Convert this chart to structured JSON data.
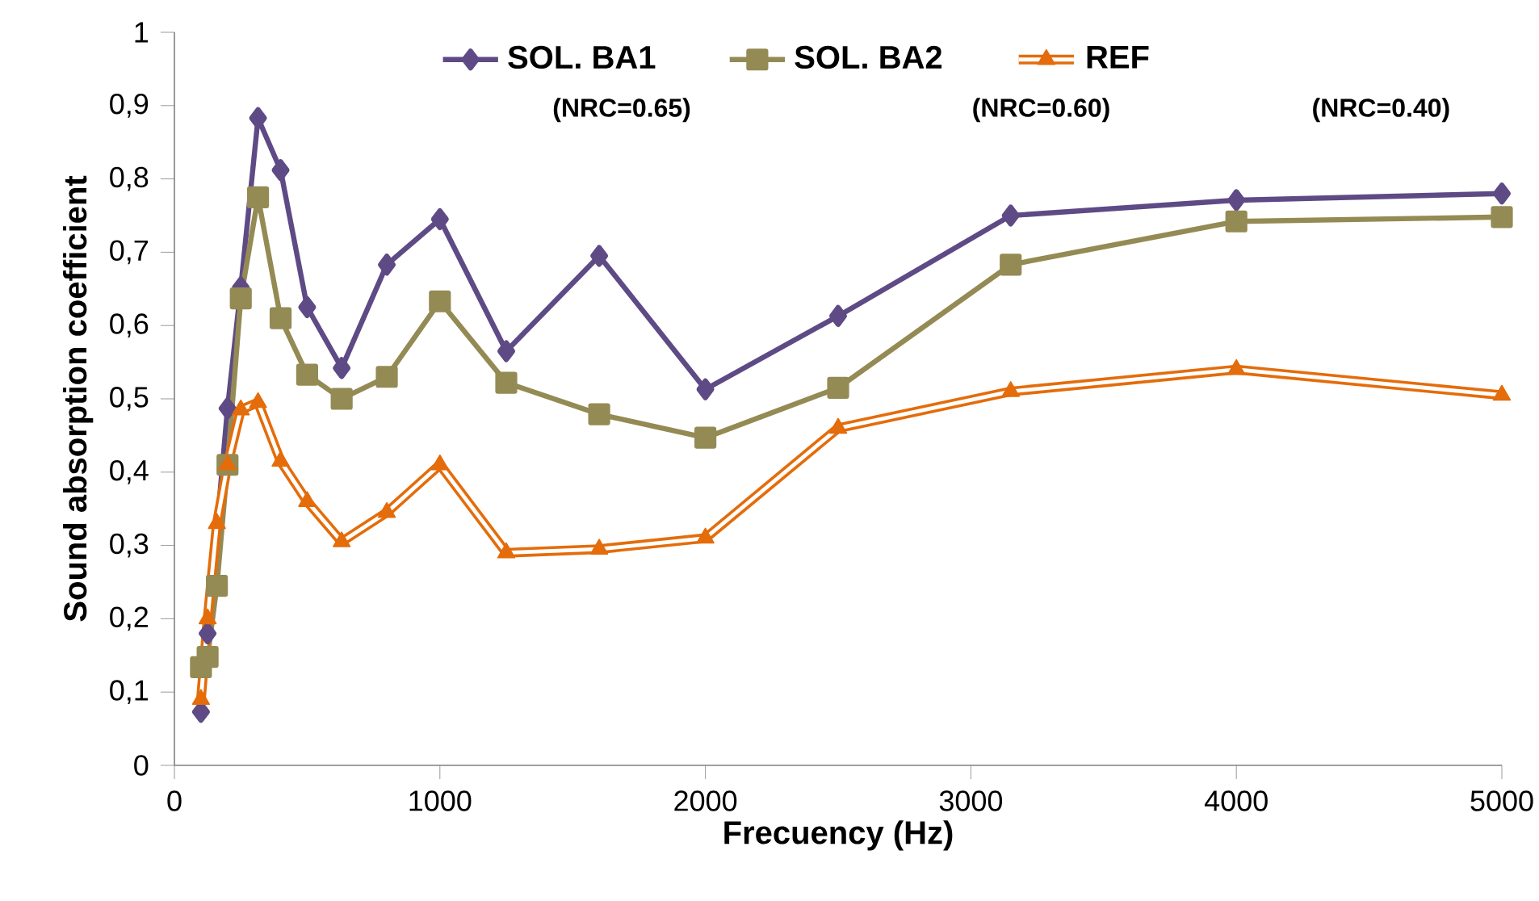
{
  "chart_data": {
    "type": "line",
    "xlabel": "Frecuency (Hz)",
    "ylabel": "Sound absorption coefficient",
    "x": [
      100,
      125,
      160,
      200,
      250,
      315,
      400,
      500,
      630,
      800,
      1000,
      1250,
      1600,
      2000,
      2500,
      3150,
      4000,
      5000
    ],
    "series": [
      {
        "name": "SOL. BA1",
        "color": "#5e4a85",
        "marker": "diamond",
        "values": [
          0.073,
          0.18,
          null,
          0.487,
          0.652,
          0.883,
          0.812,
          0.625,
          0.542,
          0.683,
          0.745,
          0.565,
          0.695,
          0.513,
          0.613,
          0.75,
          0.771,
          0.78
        ]
      },
      {
        "name": "SOL. BA2",
        "color": "#948a54",
        "marker": "square",
        "values": [
          0.134,
          0.148,
          0.245,
          0.41,
          0.637,
          0.775,
          0.61,
          0.533,
          0.5,
          0.53,
          0.633,
          0.522,
          0.479,
          0.447,
          0.515,
          0.683,
          0.742,
          0.748
        ]
      },
      {
        "name": "REF",
        "color": "#e46c0a",
        "marker": "triangle",
        "values": [
          0.09,
          0.2,
          0.33,
          0.41,
          0.485,
          0.495,
          0.415,
          0.36,
          0.305,
          0.345,
          0.41,
          0.29,
          0.295,
          0.31,
          0.46,
          0.51,
          0.54,
          0.505
        ]
      }
    ],
    "annotations": [
      "(NRC=0.65)",
      "(NRC=0.60)",
      "(NRC=0.40)"
    ],
    "xlim": [
      0,
      5000
    ],
    "xticks": [
      0,
      1000,
      2000,
      3000,
      4000,
      5000
    ],
    "ylim": [
      0,
      1
    ],
    "yticks": [
      0,
      {
        "value": 0.1,
        "label": "0,1"
      },
      {
        "value": 0.2,
        "label": "0,2"
      },
      {
        "value": 0.3,
        "label": "0,3"
      },
      {
        "value": 0.4,
        "label": "0,4"
      },
      {
        "value": 0.5,
        "label": "0,5"
      },
      {
        "value": 0.6,
        "label": "0,6"
      },
      {
        "value": 0.7,
        "label": "0,7"
      },
      {
        "value": 0.8,
        "label": "0,8"
      },
      {
        "value": 0.9,
        "label": "0,9"
      },
      1
    ],
    "grid": false,
    "legend": "top",
    "line_style": "solid"
  }
}
